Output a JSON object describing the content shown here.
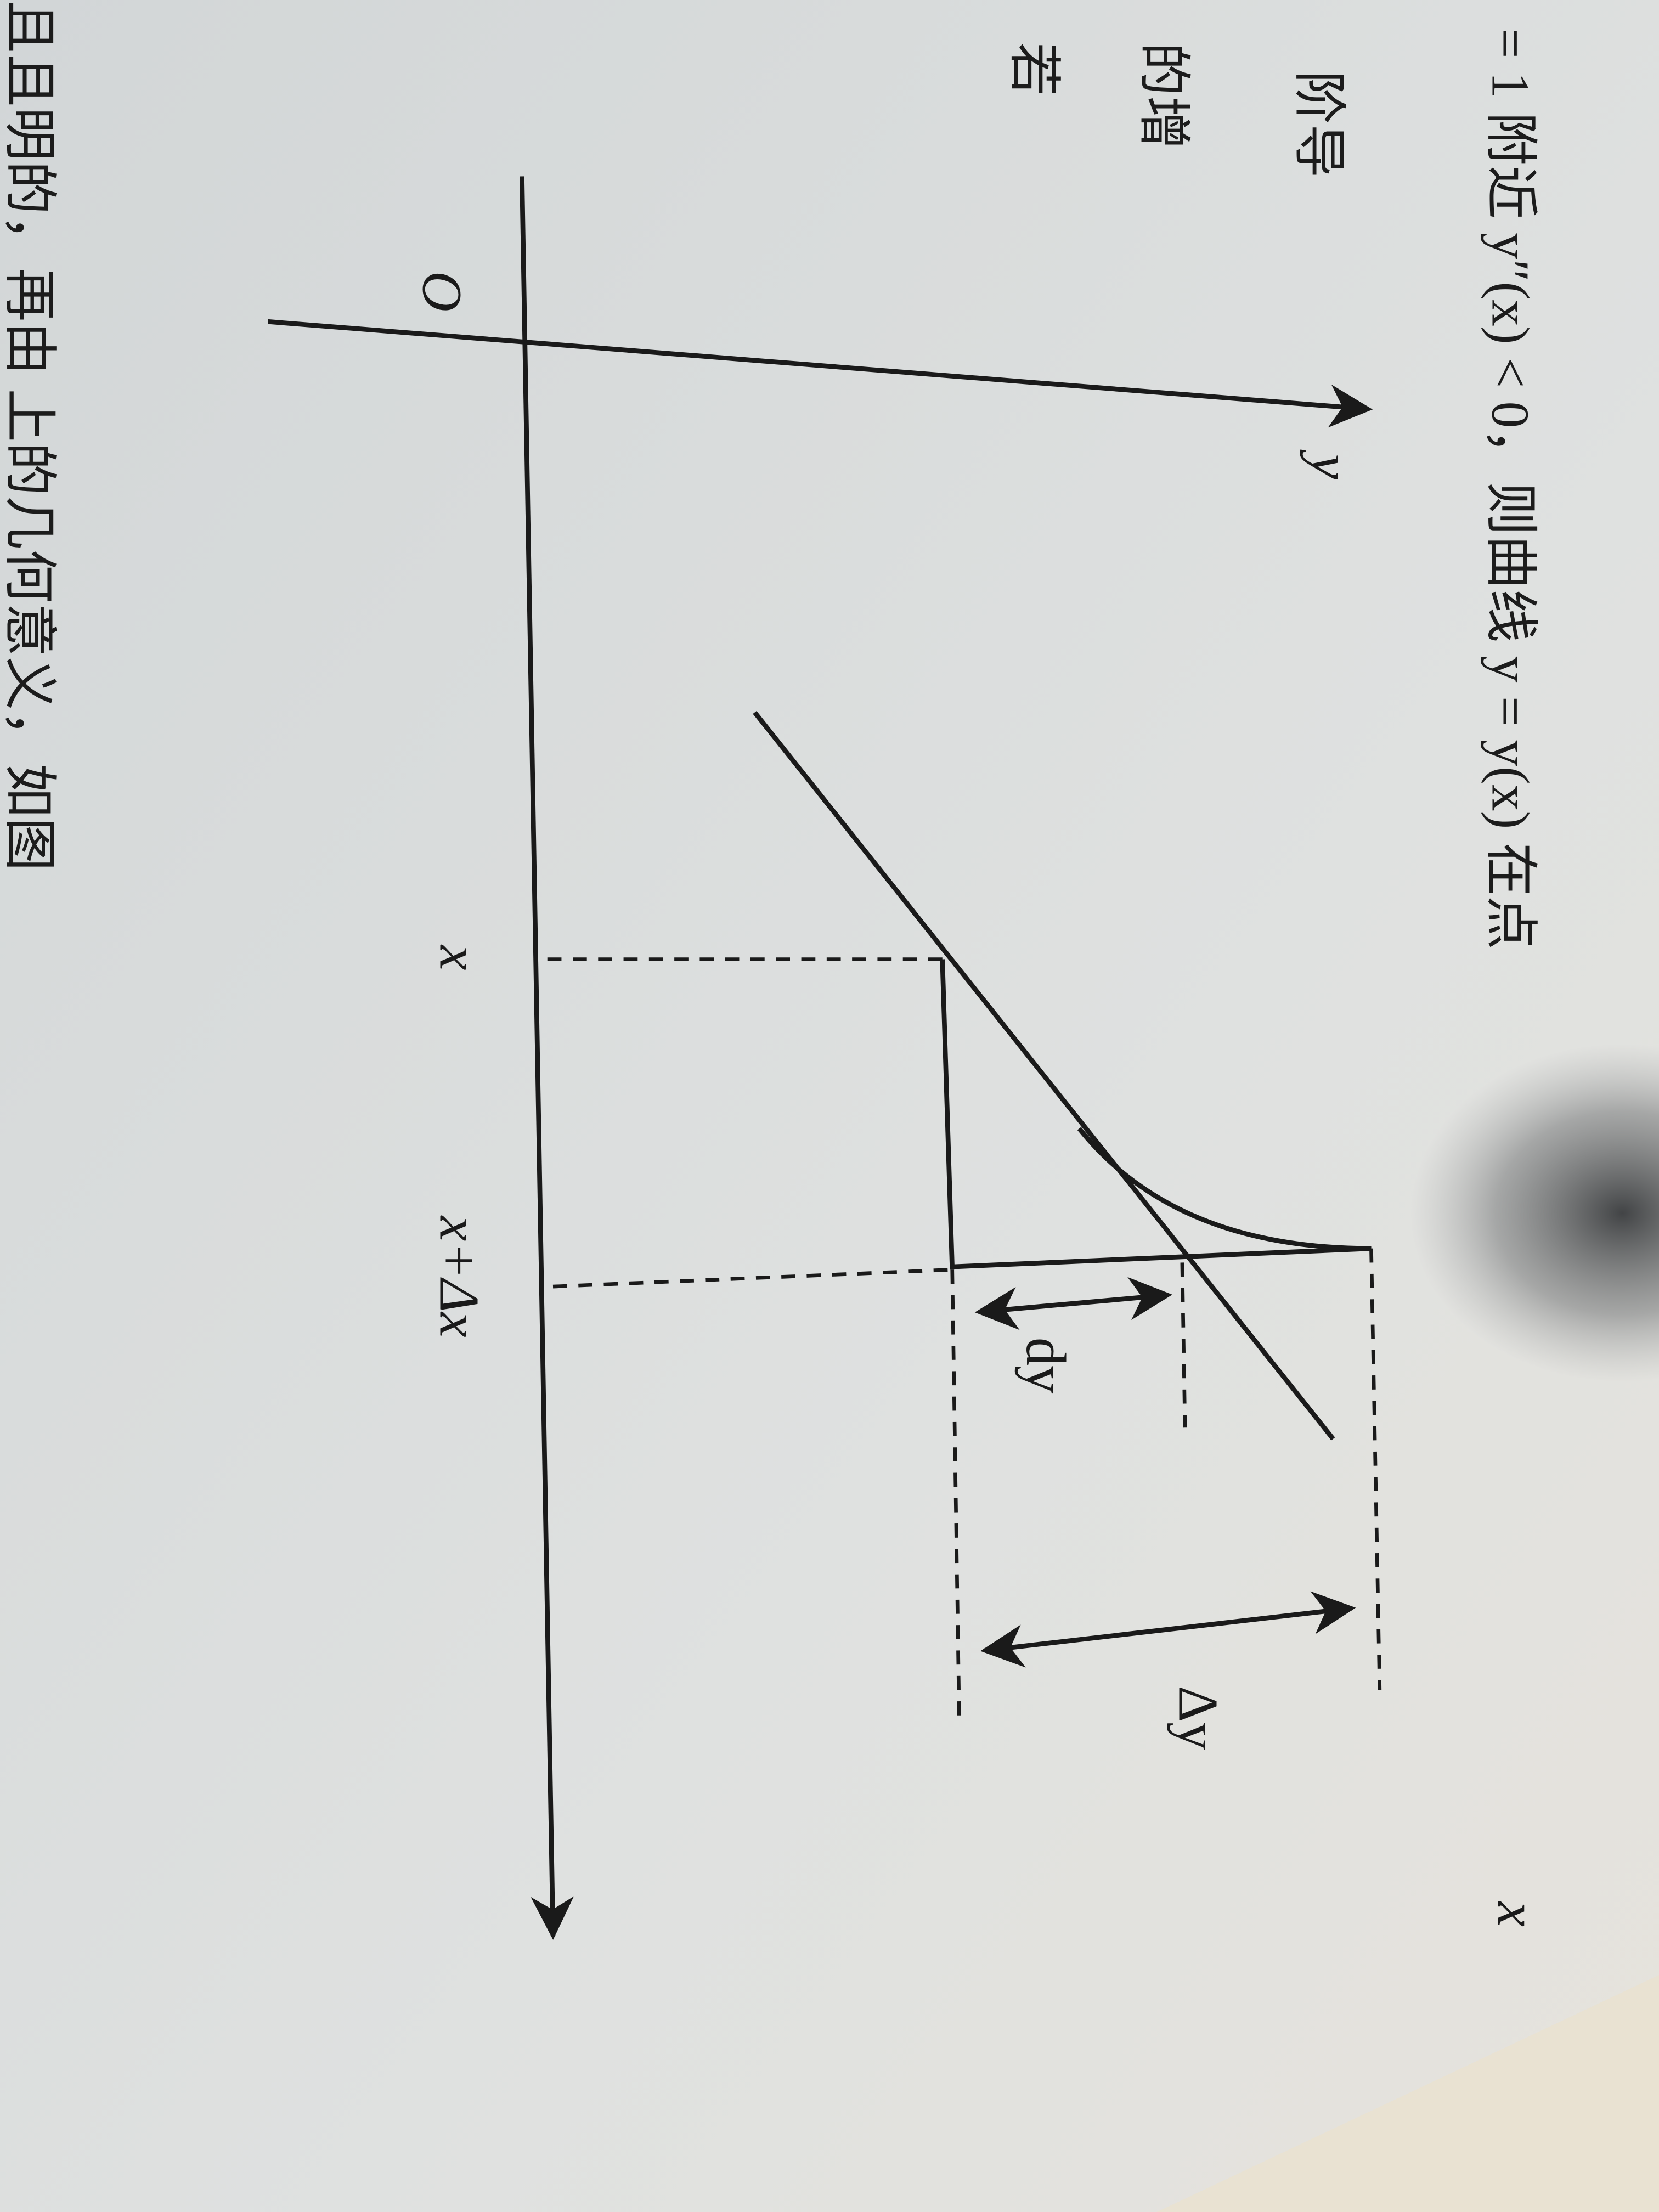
{
  "text": {
    "top_line": "= 1 附近 y″(x) < 0，则曲线 y = y(x) 在点",
    "left_line_1": "阶导",
    "left_line_2": "的增",
    "left_line_3": "若",
    "bottom_line": "且且明的，再由  上的几何意义，如图"
  },
  "figure": {
    "origin": "O",
    "y_axis": "y",
    "x_axis": "x",
    "tick_x": "x",
    "tick_x_dx": "x+Δx",
    "dy": "dy",
    "delta_y": "Δy"
  }
}
